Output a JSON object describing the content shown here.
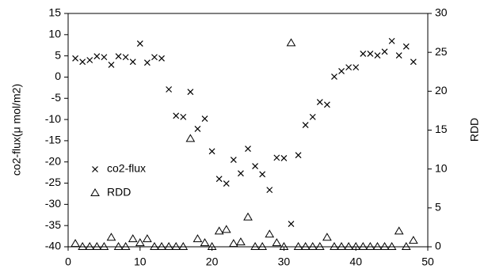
{
  "chart_data": {
    "type": "scatter",
    "y_label": "co2-flux(μ mol/m2)",
    "y2_label": "RDD",
    "xlim": [
      0,
      50
    ],
    "xticks": [
      0,
      10,
      20,
      30,
      40,
      50
    ],
    "ylim": [
      -40,
      15
    ],
    "yticks": [
      -40,
      -35,
      -30,
      -25,
      -20,
      -15,
      -10,
      -5,
      0,
      5,
      10,
      15
    ],
    "y2lim": [
      0,
      30
    ],
    "y2ticks": [
      0,
      5,
      10,
      15,
      20,
      25,
      30
    ],
    "legend": "lower-left",
    "series": [
      {
        "name": "co2-flux",
        "color": "#000000",
        "marker": "x",
        "x": [
          1,
          2,
          3,
          4,
          5,
          6,
          7,
          8,
          9,
          10,
          11,
          12,
          13,
          14,
          15,
          16,
          17,
          18,
          19,
          20,
          21,
          22,
          23,
          24,
          25,
          26,
          27,
          28,
          29,
          30,
          31,
          32,
          33,
          34,
          35,
          36,
          37,
          38,
          39,
          40,
          41,
          42,
          43,
          44,
          45,
          46,
          47,
          48
        ],
        "values": [
          4.4,
          3.6,
          4.0,
          4.9,
          4.7,
          2.9,
          4.9,
          4.7,
          3.6,
          7.9,
          3.4,
          4.7,
          4.4,
          -2.9,
          -9.1,
          -9.4,
          -3.5,
          -12.2,
          -9.8,
          -17.5,
          -24,
          -25.1,
          -19.5,
          -22.7,
          -16.9,
          -21,
          -22.9,
          -26.6,
          -19,
          -19.1,
          -34.6,
          -18.4,
          -11.3,
          -9.4,
          -5.9,
          -6.5,
          0.1,
          1.4,
          2.3,
          2.3,
          5.5,
          5.5,
          5.1,
          6,
          8.5,
          5.1,
          7.2,
          3.6
        ]
      },
      {
        "name": "RDD",
        "color": "#000000",
        "marker": "triangle",
        "axis": "y2",
        "x": [
          1,
          2,
          3,
          4,
          5,
          6,
          7,
          8,
          9,
          10,
          11,
          12,
          13,
          14,
          15,
          16,
          17,
          18,
          19,
          20,
          21,
          22,
          23,
          24,
          25,
          26,
          27,
          28,
          29,
          30,
          31,
          32,
          33,
          34,
          35,
          36,
          37,
          38,
          39,
          40,
          41,
          42,
          43,
          44,
          45,
          46,
          47,
          48
        ],
        "values": [
          0.4,
          0,
          0,
          0,
          0,
          1.2,
          0,
          0,
          1,
          0.5,
          1,
          0,
          0,
          0,
          0,
          0,
          13.9,
          1,
          0.5,
          0,
          2,
          2.2,
          0.4,
          0.6,
          3.8,
          0,
          0,
          1.6,
          0.5,
          0,
          26.2,
          0,
          0,
          0,
          0,
          1.2,
          0,
          0,
          0,
          0,
          0,
          0,
          0,
          0,
          0,
          2,
          0,
          0.8
        ]
      }
    ]
  }
}
